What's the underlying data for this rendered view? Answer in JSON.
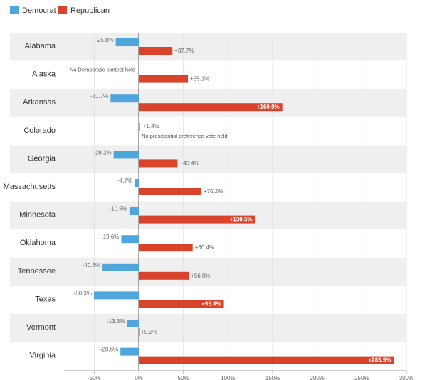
{
  "chart_data": {
    "type": "bar",
    "orientation": "horizontal",
    "categories": [
      "Alabama",
      "Alaska",
      "Arkansas",
      "Colorado",
      "Georgia",
      "Massachusetts",
      "Minnesota",
      "Oklahoma",
      "Tennessee",
      "Texas",
      "Vermont",
      "Virginia"
    ],
    "series": [
      {
        "name": "Democrat",
        "color": "#4ea6dc",
        "values": [
          -25.8,
          null,
          -31.7,
          1.4,
          -28.2,
          -4.7,
          -10.5,
          -19.6,
          -40.6,
          -50.3,
          -13.3,
          -20.6
        ],
        "labels": [
          "-25.8%",
          "",
          "-31.7%",
          "+1.4%",
          "-28.2%",
          "-4.7%",
          "-10.5%",
          "-19.6%",
          "-40.6%",
          "-50.3%",
          "-13.3%",
          "-20.6%"
        ]
      },
      {
        "name": "Republican",
        "color": "#d9432c",
        "values": [
          37.7,
          55.1,
          160.9,
          null,
          43.4,
          70.2,
          130.5,
          60.4,
          56.0,
          95.4,
          0.3,
          285.9
        ],
        "labels": [
          "+37.7%",
          "+55.1%",
          "+160.9%",
          "",
          "+43.4%",
          "+70.2%",
          "+130.5%",
          "+60.4%",
          "+56.0%",
          "+95.4%",
          "+0.3%",
          "+285.9%"
        ]
      }
    ],
    "notes": [
      {
        "category": "Alaska",
        "text": "No Democratic contest held"
      },
      {
        "category": "Colorado",
        "text": "No presidential preference vote held"
      }
    ],
    "xlim": [
      -85,
      300
    ],
    "xticks": [
      -50,
      0,
      50,
      100,
      150,
      200,
      250,
      300
    ],
    "xtick_labels": [
      "-50%",
      "0%",
      "50%",
      "100%",
      "150%",
      "200%",
      "250%",
      "300%"
    ],
    "grid": true,
    "legend": "top-left",
    "row_colors": [
      "#efefef",
      "#ffffff"
    ]
  }
}
